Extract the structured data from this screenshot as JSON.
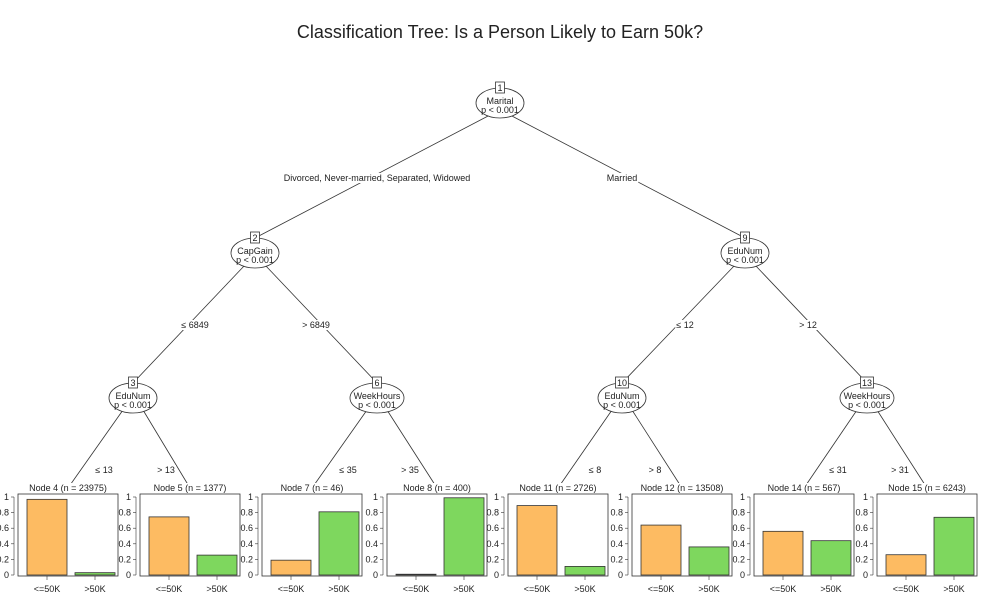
{
  "title": "Classification Tree: Is a Person Likely to Earn 50k?",
  "colors": {
    "class_le50k": "#FDBB62",
    "class_gt50k": "#7ED75E",
    "lines": "#333333"
  },
  "classes": [
    "<=50K",
    ">50K"
  ],
  "y_ticks": [
    "0",
    "0.2",
    "0.4",
    "0.6",
    "0.8",
    "1"
  ],
  "inner_nodes": [
    {
      "id": "1",
      "variable": "Marital",
      "p": "p < 0.001"
    },
    {
      "id": "2",
      "variable": "CapGain",
      "p": "p < 0.001"
    },
    {
      "id": "3",
      "variable": "EduNum",
      "p": "p < 0.001"
    },
    {
      "id": "6",
      "variable": "WeekHours",
      "p": "p < 0.001"
    },
    {
      "id": "9",
      "variable": "EduNum",
      "p": "p < 0.001"
    },
    {
      "id": "10",
      "variable": "EduNum",
      "p": "p < 0.001"
    },
    {
      "id": "13",
      "variable": "WeekHours",
      "p": "p < 0.001"
    }
  ],
  "edges": [
    {
      "from": "1",
      "to": "2",
      "label": "Divorced, Never-married, Separated, Widowed"
    },
    {
      "from": "1",
      "to": "9",
      "label": "Married"
    },
    {
      "from": "2",
      "to": "3",
      "label": "≤ 6849"
    },
    {
      "from": "2",
      "to": "6",
      "label": "> 6849"
    },
    {
      "from": "9",
      "to": "10",
      "label": "≤ 12"
    },
    {
      "from": "9",
      "to": "13",
      "label": "> 12"
    },
    {
      "from": "3",
      "to": "4",
      "label": "≤ 13"
    },
    {
      "from": "3",
      "to": "5",
      "label": "> 13"
    },
    {
      "from": "6",
      "to": "7",
      "label": "≤ 35"
    },
    {
      "from": "6",
      "to": "8",
      "label": "> 35"
    },
    {
      "from": "10",
      "to": "11",
      "label": "≤ 8"
    },
    {
      "from": "10",
      "to": "12",
      "label": "> 8"
    },
    {
      "from": "13",
      "to": "14",
      "label": "≤ 31"
    },
    {
      "from": "13",
      "to": "15",
      "label": "> 31"
    }
  ],
  "leaves": [
    {
      "id": "4",
      "title": "Node 4 (n = 23975)",
      "proportions": [
        0.97,
        0.03
      ]
    },
    {
      "id": "5",
      "title": "Node 5 (n = 1377)",
      "proportions": [
        0.745,
        0.255
      ]
    },
    {
      "id": "7",
      "title": "Node 7 (n = 46)",
      "proportions": [
        0.19,
        0.81
      ]
    },
    {
      "id": "8",
      "title": "Node 8 (n = 400)",
      "proportions": [
        0.01,
        0.99
      ]
    },
    {
      "id": "11",
      "title": "Node 11 (n = 2726)",
      "proportions": [
        0.89,
        0.11
      ]
    },
    {
      "id": "12",
      "title": "Node 12 (n = 13508)",
      "proportions": [
        0.64,
        0.36
      ]
    },
    {
      "id": "14",
      "title": "Node 14 (n = 567)",
      "proportions": [
        0.56,
        0.44
      ]
    },
    {
      "id": "15",
      "title": "Node 15 (n = 6243)",
      "proportions": [
        0.26,
        0.74
      ]
    }
  ]
}
